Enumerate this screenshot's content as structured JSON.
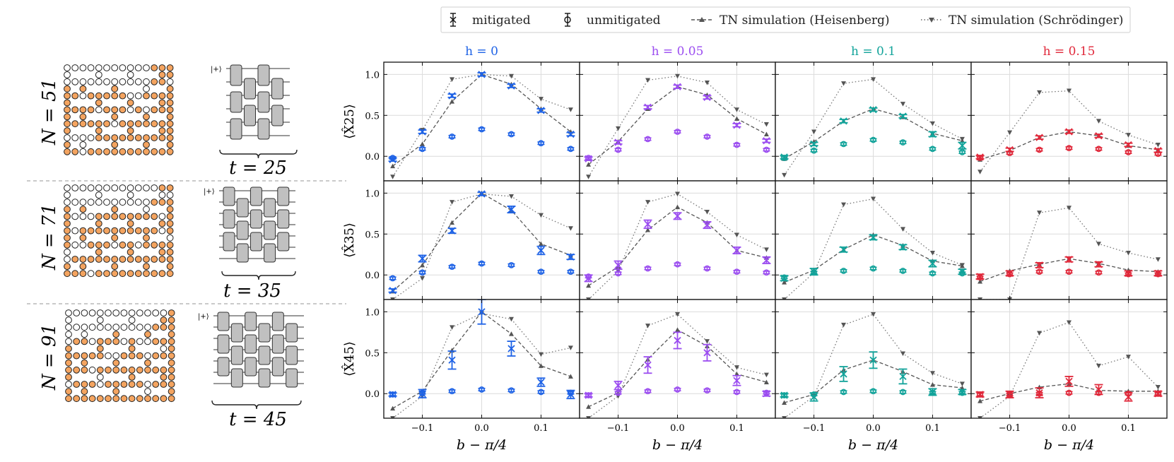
{
  "legend": {
    "items": [
      {
        "label": "mitigated",
        "marker": "x",
        "style": "errorbar"
      },
      {
        "label": "unmitigated",
        "marker": "o",
        "style": "errorbar"
      },
      {
        "label": "TN simulation (Heisenberg)",
        "marker": "^",
        "style": "dashed"
      },
      {
        "label": "TN simulation (Schrödinger)",
        "marker": "v",
        "style": "dotted"
      }
    ]
  },
  "left_panel": {
    "rows": [
      {
        "n_label": "N = 51",
        "t_label": "t = 25"
      },
      {
        "n_label": "N = 71",
        "t_label": "t = 35"
      },
      {
        "n_label": "N = 91",
        "t_label": "t = 45"
      }
    ],
    "colors": {
      "filled_qubit": "#F4A460",
      "empty_qubit": "#ffffff",
      "gate": "#C0C0C0"
    }
  },
  "chart_data": {
    "type": "scatter",
    "x": [
      -0.15,
      -0.1,
      -0.05,
      0.0,
      0.05,
      0.1,
      0.15
    ],
    "xlim": [
      -0.165,
      0.165
    ],
    "ylim": [
      -0.3,
      1.15
    ],
    "xticks": [
      -0.1,
      0.0,
      0.1
    ],
    "xtick_labels": [
      "−0.1",
      "0.0",
      "0.1"
    ],
    "yticks": [
      0.0,
      0.5,
      1.0
    ],
    "ytick_labels": [
      "0.0",
      "0.5",
      "1.0"
    ],
    "xlabel": "b − π/4",
    "grid": true,
    "columns": [
      {
        "title": "h = 0",
        "color": "#1F63E6"
      },
      {
        "title": "h = 0.05",
        "color": "#9B4DF0"
      },
      {
        "title": "h = 0.1",
        "color": "#12A39A"
      },
      {
        "title": "h = 0.15",
        "color": "#E0283A"
      }
    ],
    "rows": [
      {
        "ylabel": "⟨X̂25⟩"
      },
      {
        "ylabel": "⟨X̂35⟩"
      },
      {
        "ylabel": "⟨X̂45⟩"
      }
    ],
    "panels": [
      [
        {
          "mitigated": [
            -0.04,
            0.3,
            0.74,
            1.0,
            0.86,
            0.56,
            0.27
          ],
          "mit_err": [
            0.02,
            0.02,
            0.02,
            0.02,
            0.02,
            0.02,
            0.02
          ],
          "unmitigated": [
            -0.02,
            0.09,
            0.24,
            0.33,
            0.27,
            0.16,
            0.09
          ],
          "heisenberg": [
            -0.12,
            0.15,
            0.67,
            1.0,
            0.88,
            0.58,
            0.3
          ],
          "schrodinger": [
            -0.25,
            0.32,
            0.94,
            1.0,
            0.98,
            0.7,
            0.57
          ]
        },
        {
          "mitigated": [
            -0.03,
            0.17,
            0.6,
            0.85,
            0.72,
            0.38,
            0.19
          ],
          "mit_err": [
            0.02,
            0.02,
            0.02,
            0.02,
            0.02,
            0.02,
            0.02
          ],
          "unmitigated": [
            -0.02,
            0.08,
            0.21,
            0.3,
            0.24,
            0.14,
            0.08
          ],
          "heisenberg": [
            -0.1,
            0.18,
            0.58,
            0.85,
            0.75,
            0.46,
            0.27
          ],
          "schrodinger": [
            -0.25,
            0.34,
            0.93,
            0.98,
            0.9,
            0.57,
            0.39
          ]
        },
        {
          "mitigated": [
            -0.01,
            0.15,
            0.43,
            0.57,
            0.49,
            0.27,
            0.13
          ],
          "mit_err": [
            0.02,
            0.02,
            0.02,
            0.02,
            0.02,
            0.03,
            0.04
          ],
          "unmitigated": [
            -0.02,
            0.07,
            0.15,
            0.2,
            0.17,
            0.09,
            0.05
          ],
          "heisenberg": [
            -0.03,
            0.18,
            0.43,
            0.58,
            0.48,
            0.28,
            0.19
          ],
          "schrodinger": [
            -0.23,
            0.3,
            0.89,
            0.94,
            0.64,
            0.4,
            0.21
          ]
        },
        {
          "mitigated": [
            -0.01,
            0.08,
            0.23,
            0.3,
            0.25,
            0.14,
            0.07
          ],
          "mit_err": [
            0.02,
            0.02,
            0.02,
            0.02,
            0.02,
            0.02,
            0.02
          ],
          "unmitigated": [
            -0.02,
            0.04,
            0.08,
            0.1,
            0.09,
            0.05,
            0.03
          ],
          "heisenberg": [
            -0.04,
            0.07,
            0.23,
            0.3,
            0.25,
            0.13,
            0.08
          ],
          "schrodinger": [
            -0.19,
            0.29,
            0.78,
            0.8,
            0.43,
            0.26,
            0.14
          ]
        }
      ],
      [
        {
          "mitigated": [
            -0.19,
            0.2,
            0.54,
            0.99,
            0.8,
            0.3,
            0.22
          ],
          "mit_err": [
            0.02,
            0.04,
            0.03,
            0.02,
            0.04,
            0.05,
            0.03
          ],
          "unmitigated": [
            -0.04,
            0.03,
            0.1,
            0.14,
            0.12,
            0.04,
            0.04
          ],
          "heisenberg": [
            -0.2,
            0.12,
            0.64,
            1.0,
            0.79,
            0.38,
            0.24
          ],
          "schrodinger": [
            -0.3,
            -0.04,
            0.89,
            0.99,
            0.96,
            0.73,
            0.57
          ]
        },
        {
          "mitigated": [
            -0.04,
            0.12,
            0.62,
            0.72,
            0.61,
            0.3,
            0.18
          ],
          "mit_err": [
            0.04,
            0.05,
            0.05,
            0.04,
            0.04,
            0.04,
            0.04
          ],
          "unmitigated": [
            -0.02,
            0.02,
            0.08,
            0.13,
            0.08,
            0.04,
            0.03
          ],
          "heisenberg": [
            -0.13,
            0.1,
            0.55,
            0.83,
            0.64,
            0.3,
            0.21
          ],
          "schrodinger": [
            -0.3,
            0.05,
            0.89,
            0.99,
            0.77,
            0.49,
            0.31
          ]
        },
        {
          "mitigated": [
            -0.04,
            0.04,
            0.31,
            0.46,
            0.34,
            0.14,
            0.04
          ],
          "mit_err": [
            0.03,
            0.04,
            0.03,
            0.03,
            0.03,
            0.04,
            0.03
          ],
          "unmitigated": [
            -0.03,
            0.03,
            0.05,
            0.08,
            0.05,
            0.02,
            0.02
          ],
          "heisenberg": [
            -0.09,
            0.06,
            0.31,
            0.49,
            0.36,
            0.17,
            0.11
          ],
          "schrodinger": [
            -0.3,
            0.03,
            0.86,
            0.93,
            0.56,
            0.27,
            0.12
          ]
        },
        {
          "mitigated": [
            -0.02,
            0.02,
            0.12,
            0.19,
            0.13,
            0.02,
            0.02
          ],
          "mit_err": [
            0.03,
            0.03,
            0.03,
            0.03,
            0.03,
            0.03,
            0.03
          ],
          "unmitigated": [
            -0.03,
            0.01,
            0.04,
            0.04,
            0.03,
            0.01,
            0.01
          ],
          "heisenberg": [
            -0.08,
            0.05,
            0.13,
            0.2,
            0.14,
            0.06,
            0.04
          ],
          "schrodinger": [
            -0.3,
            -0.3,
            0.76,
            0.82,
            0.38,
            0.27,
            0.19
          ]
        }
      ],
      [
        {
          "mitigated": [
            -0.01,
            0.0,
            0.41,
            1.0,
            0.55,
            0.14,
            -0.01
          ],
          "mit_err": [
            0.02,
            0.05,
            0.11,
            0.15,
            0.09,
            0.05,
            0.05
          ],
          "unmitigated": [
            -0.01,
            0.01,
            0.03,
            0.05,
            0.04,
            0.02,
            0.01
          ],
          "heisenberg": [
            -0.18,
            0.03,
            0.53,
            1.0,
            0.73,
            0.34,
            0.21
          ],
          "schrodinger": [
            -0.3,
            -0.03,
            0.81,
            0.98,
            0.91,
            0.48,
            0.56
          ]
        },
        {
          "mitigated": [
            -0.02,
            0.1,
            0.35,
            0.65,
            0.5,
            0.16,
            0.0
          ],
          "mit_err": [
            0.02,
            0.05,
            0.1,
            0.1,
            0.1,
            0.06,
            0.03
          ],
          "unmitigated": [
            -0.02,
            0.01,
            0.03,
            0.05,
            0.04,
            0.02,
            0.01
          ],
          "heisenberg": [
            -0.16,
            0.01,
            0.42,
            0.78,
            0.58,
            0.24,
            0.14
          ],
          "schrodinger": [
            -0.3,
            -0.03,
            0.83,
            0.97,
            0.64,
            0.32,
            0.23
          ]
        },
        {
          "mitigated": [
            -0.02,
            -0.04,
            0.24,
            0.41,
            0.21,
            0.02,
            0.02
          ],
          "mit_err": [
            0.02,
            0.05,
            0.09,
            0.1,
            0.09,
            0.04,
            0.03
          ],
          "unmitigated": [
            -0.02,
            -0.01,
            0.02,
            0.03,
            0.02,
            0.01,
            0.01
          ],
          "heisenberg": [
            -0.11,
            -0.01,
            0.29,
            0.41,
            0.27,
            0.11,
            0.07
          ],
          "schrodinger": [
            -0.3,
            -0.03,
            0.84,
            0.97,
            0.49,
            0.25,
            0.12
          ]
        },
        {
          "mitigated": [
            -0.01,
            -0.01,
            0.01,
            0.15,
            0.05,
            -0.04,
            0.0
          ],
          "mit_err": [
            0.03,
            0.04,
            0.06,
            0.06,
            0.06,
            0.05,
            0.03
          ],
          "unmitigated": [
            -0.01,
            -0.01,
            0.0,
            0.01,
            0.01,
            0.0,
            0.0
          ],
          "heisenberg": [
            -0.09,
            0.0,
            0.08,
            0.12,
            0.04,
            0.03,
            0.03
          ],
          "schrodinger": [
            -0.3,
            -0.03,
            0.74,
            0.87,
            0.34,
            0.45,
            0.08
          ]
        }
      ]
    ]
  }
}
